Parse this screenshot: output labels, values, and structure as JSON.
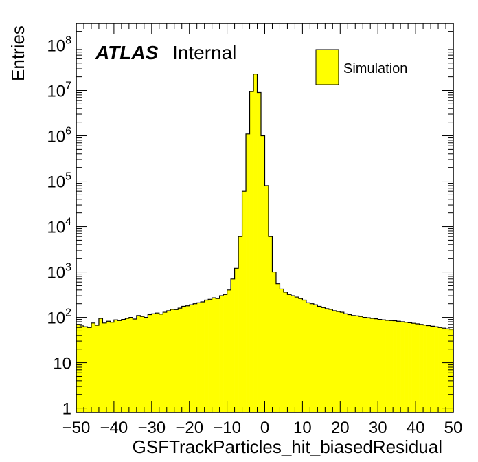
{
  "chart_data": {
    "type": "bar",
    "title": "",
    "xlabel": "GSFTrackParticles_hit_biasedResidual",
    "ylabel": "Entries",
    "xlim": [
      -50,
      50
    ],
    "ylim": [
      0.8,
      300000000
    ],
    "y_scale": "log",
    "bin_width": 1,
    "bin_low_edges": [
      -50,
      -49,
      -48,
      -47,
      -46,
      -45,
      -44,
      -43,
      -42,
      -41,
      -40,
      -39,
      -38,
      -37,
      -36,
      -35,
      -34,
      -33,
      -32,
      -31,
      -30,
      -29,
      -28,
      -27,
      -26,
      -25,
      -24,
      -23,
      -22,
      -21,
      -20,
      -19,
      -18,
      -17,
      -16,
      -15,
      -14,
      -13,
      -12,
      -11,
      -10,
      -9,
      -8,
      -7,
      -6,
      -5,
      -4,
      -3,
      -2,
      -1,
      0,
      1,
      2,
      3,
      4,
      5,
      6,
      7,
      8,
      9,
      10,
      11,
      12,
      13,
      14,
      15,
      16,
      17,
      18,
      19,
      20,
      21,
      22,
      23,
      24,
      25,
      26,
      27,
      28,
      29,
      30,
      31,
      32,
      33,
      34,
      35,
      36,
      37,
      38,
      39,
      40,
      41,
      42,
      43,
      44,
      45,
      46,
      47,
      48,
      49
    ],
    "values": [
      70,
      65,
      62,
      60,
      75,
      67,
      95,
      75,
      82,
      78,
      88,
      85,
      90,
      95,
      100,
      92,
      110,
      105,
      100,
      115,
      120,
      125,
      118,
      130,
      140,
      150,
      148,
      160,
      175,
      180,
      190,
      200,
      210,
      220,
      240,
      250,
      270,
      260,
      300,
      320,
      400,
      700,
      1200,
      6000,
      60000,
      1100000,
      9500000,
      23000000,
      9000000,
      1000000,
      80000,
      6000,
      1000,
      550,
      420,
      360,
      320,
      300,
      280,
      260,
      240,
      210,
      200,
      190,
      175,
      165,
      155,
      150,
      140,
      135,
      130,
      120,
      115,
      110,
      108,
      105,
      100,
      98,
      95,
      93,
      90,
      88,
      86,
      85,
      84,
      82,
      80,
      78,
      76,
      74,
      72,
      70,
      68,
      66,
      64,
      62,
      60,
      58,
      56,
      55
    ],
    "x_ticks": [
      "−50",
      "−40",
      "−30",
      "−20",
      "−10",
      "0",
      "10",
      "20",
      "30",
      "40",
      "50"
    ],
    "y_ticks": [
      {
        "base": "1",
        "exp": ""
      },
      {
        "base": "10",
        "exp": ""
      },
      {
        "base": "10",
        "exp": "2"
      },
      {
        "base": "10",
        "exp": "3"
      },
      {
        "base": "10",
        "exp": "4"
      },
      {
        "base": "10",
        "exp": "5"
      },
      {
        "base": "10",
        "exp": "6"
      },
      {
        "base": "10",
        "exp": "7"
      },
      {
        "base": "10",
        "exp": "8"
      }
    ],
    "legend": [
      {
        "name": "Simulation",
        "color": "#ffff00"
      }
    ],
    "legend_position": "top-right",
    "fill_color": "#ffff00",
    "line_color": "#000000",
    "grid": false
  },
  "labels": {
    "atlas": "ATLAS",
    "internal": "Internal"
  }
}
